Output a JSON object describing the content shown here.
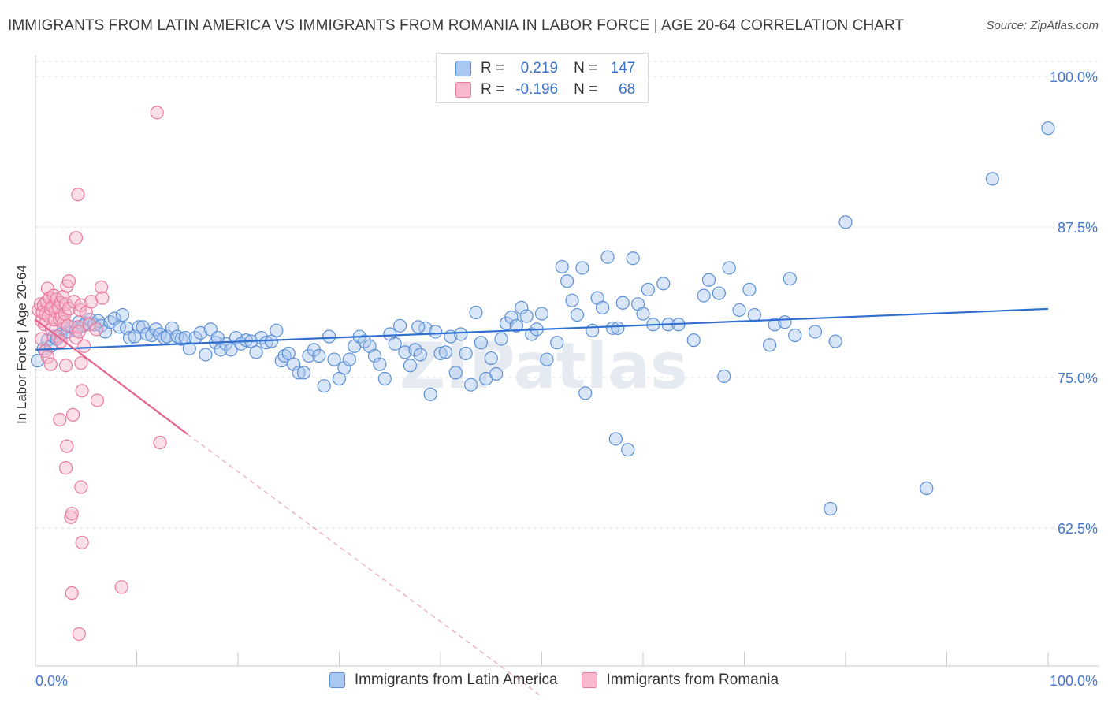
{
  "title": "IMMIGRANTS FROM LATIN AMERICA VS IMMIGRANTS FROM ROMANIA IN LABOR FORCE | AGE 20-64 CORRELATION CHART",
  "source": "Source: ZipAtlas.com",
  "watermark": "ZIPatlas",
  "legend": {
    "r_label": "R =",
    "n_label": "N =",
    "series1": {
      "r": "0.219",
      "n": "147"
    },
    "series2": {
      "r": "-0.196",
      "n": "68"
    }
  },
  "colors": {
    "blue_fill": "#aac8f0",
    "blue_stroke": "#5b8fd6",
    "blue_line": "#2f6fd0",
    "pink_fill": "#f7b8cb",
    "pink_stroke": "#ea7a9c",
    "pink_line": "#e3648f",
    "tick_label": "#4477cc"
  },
  "chart_data": {
    "type": "scatter",
    "title": "IMMIGRANTS FROM LATIN AMERICA VS IMMIGRANTS FROM ROMANIA IN LABOR FORCE | AGE 20-64 CORRELATION CHART",
    "xlabel": "",
    "ylabel": "In Labor Force | Age 20-64",
    "xlim": [
      0,
      100
    ],
    "ylim": [
      50,
      101.5
    ],
    "x_tick_labels": [
      "0.0%",
      "100.0%"
    ],
    "y_ticks": [
      100,
      87.5,
      75,
      62.5
    ],
    "y_tick_labels": [
      "100.0%",
      "87.5%",
      "75.0%",
      "62.5%"
    ],
    "series": [
      {
        "name": "Immigrants from Latin America",
        "r": 0.219,
        "n": 147,
        "trend": {
          "x": [
            0,
            100
          ],
          "y": [
            77.3,
            80.7
          ]
        },
        "points": [
          [
            0.2,
            76.4
          ],
          [
            0.8,
            77.4
          ],
          [
            1.2,
            78.1
          ],
          [
            1.5,
            77.6
          ],
          [
            1.8,
            78.4
          ],
          [
            2.1,
            78.2
          ],
          [
            2.5,
            78.6
          ],
          [
            2.8,
            79.1
          ],
          [
            3.2,
            78.8
          ],
          [
            3.6,
            79.2
          ],
          [
            4.0,
            78.9
          ],
          [
            4.3,
            79.6
          ],
          [
            4.7,
            79.3
          ],
          [
            5.0,
            79.5
          ],
          [
            5.4,
            79.8
          ],
          [
            5.8,
            79.4
          ],
          [
            6.2,
            79.7
          ],
          [
            6.5,
            79.3
          ],
          [
            6.9,
            78.8
          ],
          [
            7.4,
            79.6
          ],
          [
            7.8,
            79.9
          ],
          [
            8.3,
            79.2
          ],
          [
            8.6,
            80.2
          ],
          [
            9.0,
            79.1
          ],
          [
            9.3,
            78.3
          ],
          [
            9.8,
            78.4
          ],
          [
            10.2,
            79.2
          ],
          [
            10.6,
            79.2
          ],
          [
            11.0,
            78.6
          ],
          [
            11.5,
            78.5
          ],
          [
            11.9,
            79.0
          ],
          [
            12.3,
            78.6
          ],
          [
            12.7,
            78.3
          ],
          [
            13.0,
            78.4
          ],
          [
            13.5,
            79.1
          ],
          [
            14.0,
            78.4
          ],
          [
            14.4,
            78.2
          ],
          [
            14.8,
            78.3
          ],
          [
            15.2,
            77.4
          ],
          [
            15.8,
            78.3
          ],
          [
            16.3,
            78.7
          ],
          [
            16.8,
            76.9
          ],
          [
            17.3,
            79.0
          ],
          [
            17.8,
            77.9
          ],
          [
            18.3,
            77.3
          ],
          [
            18.8,
            77.8
          ],
          [
            19.3,
            77.3
          ],
          [
            19.8,
            78.3
          ],
          [
            20.3,
            77.8
          ],
          [
            20.8,
            78.1
          ],
          [
            21.3,
            78.0
          ],
          [
            21.8,
            77.1
          ],
          [
            22.3,
            78.3
          ],
          [
            22.8,
            77.9
          ],
          [
            23.3,
            78.0
          ],
          [
            23.8,
            78.9
          ],
          [
            24.3,
            76.4
          ],
          [
            24.6,
            76.8
          ],
          [
            25.0,
            77.0
          ],
          [
            25.5,
            76.1
          ],
          [
            26.0,
            75.4
          ],
          [
            26.5,
            75.4
          ],
          [
            27.0,
            76.8
          ],
          [
            27.5,
            77.3
          ],
          [
            28.0,
            76.8
          ],
          [
            28.5,
            74.3
          ],
          [
            29.0,
            78.4
          ],
          [
            29.5,
            76.5
          ],
          [
            30.0,
            74.9
          ],
          [
            30.5,
            75.8
          ],
          [
            31.0,
            76.5
          ],
          [
            31.5,
            77.6
          ],
          [
            32.0,
            78.4
          ],
          [
            32.5,
            78.0
          ],
          [
            33.0,
            77.6
          ],
          [
            33.5,
            76.8
          ],
          [
            34.0,
            76.1
          ],
          [
            34.5,
            74.9
          ],
          [
            35.0,
            78.6
          ],
          [
            35.5,
            77.8
          ],
          [
            36.0,
            79.3
          ],
          [
            36.5,
            77.1
          ],
          [
            37.0,
            76.0
          ],
          [
            37.5,
            77.3
          ],
          [
            38.0,
            76.9
          ],
          [
            38.5,
            79.1
          ],
          [
            39.0,
            73.6
          ],
          [
            39.5,
            78.8
          ],
          [
            40.0,
            77.0
          ],
          [
            40.5,
            77.1
          ],
          [
            41.0,
            78.4
          ],
          [
            41.5,
            75.4
          ],
          [
            42.0,
            78.6
          ],
          [
            42.5,
            77.0
          ],
          [
            43.0,
            74.4
          ],
          [
            43.5,
            80.4
          ],
          [
            44.0,
            77.9
          ],
          [
            44.5,
            74.9
          ],
          [
            45.0,
            76.6
          ],
          [
            45.5,
            75.3
          ],
          [
            46.0,
            78.2
          ],
          [
            46.5,
            79.5
          ],
          [
            47.0,
            80.0
          ],
          [
            47.5,
            79.3
          ],
          [
            48.0,
            80.8
          ],
          [
            48.5,
            80.1
          ],
          [
            49.0,
            78.6
          ],
          [
            49.5,
            79.0
          ],
          [
            50.0,
            80.3
          ],
          [
            50.5,
            76.5
          ],
          [
            51.5,
            77.9
          ],
          [
            52.0,
            84.2
          ],
          [
            52.5,
            83.0
          ],
          [
            53.0,
            81.4
          ],
          [
            53.5,
            80.2
          ],
          [
            54.0,
            84.1
          ],
          [
            54.3,
            73.7
          ],
          [
            55.0,
            78.9
          ],
          [
            55.5,
            81.6
          ],
          [
            56.0,
            80.8
          ],
          [
            56.5,
            85.0
          ],
          [
            57.0,
            79.1
          ],
          [
            57.3,
            69.9
          ],
          [
            58.0,
            81.2
          ],
          [
            58.5,
            69.0
          ],
          [
            59.0,
            84.9
          ],
          [
            59.5,
            81.1
          ],
          [
            60.0,
            80.3
          ],
          [
            60.5,
            82.3
          ],
          [
            61.0,
            79.4
          ],
          [
            62.0,
            82.8
          ],
          [
            62.5,
            79.4
          ],
          [
            63.5,
            79.4
          ],
          [
            65.0,
            78.1
          ],
          [
            66.0,
            81.8
          ],
          [
            66.5,
            83.1
          ],
          [
            67.5,
            82.0
          ],
          [
            68.0,
            75.1
          ],
          [
            68.5,
            84.1
          ],
          [
            69.5,
            80.6
          ],
          [
            70.5,
            82.3
          ],
          [
            71.0,
            80.2
          ],
          [
            72.5,
            77.7
          ],
          [
            73.0,
            79.4
          ],
          [
            74.0,
            79.6
          ],
          [
            74.5,
            83.2
          ],
          [
            75.0,
            78.5
          ],
          [
            77.0,
            78.8
          ],
          [
            78.5,
            64.1
          ],
          [
            79.0,
            78.0
          ],
          [
            80.0,
            87.9
          ],
          [
            88.0,
            65.8
          ],
          [
            94.5,
            91.5
          ],
          [
            100.0,
            95.7
          ],
          [
            57.5,
            79.1
          ],
          [
            37.8,
            79.2
          ],
          [
            18.0,
            78.3
          ]
        ]
      },
      {
        "name": "Immigrants from Romania",
        "r": -0.196,
        "n": 68,
        "trend": {
          "x": [
            0,
            15
          ],
          "y": [
            79.8,
            70.3
          ]
        },
        "trend_extension": {
          "x": [
            15,
            50
          ],
          "y": [
            70.3,
            48.5
          ]
        },
        "points": [
          [
            0.3,
            80.6
          ],
          [
            0.5,
            81.1
          ],
          [
            0.6,
            79.7
          ],
          [
            0.7,
            80.4
          ],
          [
            0.8,
            81.0
          ],
          [
            0.9,
            79.4
          ],
          [
            1.0,
            80.3
          ],
          [
            1.1,
            81.3
          ],
          [
            1.2,
            82.4
          ],
          [
            1.3,
            80.1
          ],
          [
            1.4,
            81.6
          ],
          [
            1.5,
            80.7
          ],
          [
            1.6,
            79.0
          ],
          [
            1.7,
            80.9
          ],
          [
            1.8,
            81.8
          ],
          [
            1.9,
            79.8
          ],
          [
            2.0,
            80.5
          ],
          [
            2.1,
            81.5
          ],
          [
            2.2,
            78.4
          ],
          [
            2.3,
            80.8
          ],
          [
            2.4,
            79.9
          ],
          [
            2.5,
            81.2
          ],
          [
            2.6,
            80.0
          ],
          [
            2.7,
            81.7
          ],
          [
            2.8,
            79.6
          ],
          [
            2.9,
            80.3
          ],
          [
            3.0,
            81.1
          ],
          [
            3.1,
            82.6
          ],
          [
            3.2,
            79.3
          ],
          [
            3.3,
            80.7
          ],
          [
            1.0,
            77.2
          ],
          [
            1.2,
            76.7
          ],
          [
            1.5,
            76.1
          ],
          [
            2.5,
            78.0
          ],
          [
            3.0,
            76.0
          ],
          [
            3.3,
            83.0
          ],
          [
            3.8,
            81.3
          ],
          [
            4.0,
            78.3
          ],
          [
            4.2,
            79.2
          ],
          [
            4.4,
            80.6
          ],
          [
            4.5,
            81.0
          ],
          [
            4.0,
            86.6
          ],
          [
            4.2,
            90.2
          ],
          [
            4.3,
            78.8
          ],
          [
            4.5,
            76.2
          ],
          [
            4.6,
            73.9
          ],
          [
            4.8,
            77.6
          ],
          [
            5.0,
            80.4
          ],
          [
            5.3,
            79.4
          ],
          [
            5.5,
            81.3
          ],
          [
            6.0,
            79.0
          ],
          [
            6.1,
            73.1
          ],
          [
            6.5,
            82.5
          ],
          [
            6.6,
            81.6
          ],
          [
            12.0,
            97.0
          ],
          [
            12.3,
            69.6
          ],
          [
            2.4,
            71.5
          ],
          [
            3.0,
            67.5
          ],
          [
            3.1,
            69.3
          ],
          [
            3.5,
            63.4
          ],
          [
            3.6,
            63.7
          ],
          [
            4.5,
            65.9
          ],
          [
            4.6,
            61.3
          ],
          [
            3.6,
            57.1
          ],
          [
            4.3,
            53.7
          ],
          [
            8.5,
            57.6
          ],
          [
            3.7,
            71.9
          ],
          [
            0.6,
            78.2
          ]
        ]
      }
    ]
  }
}
